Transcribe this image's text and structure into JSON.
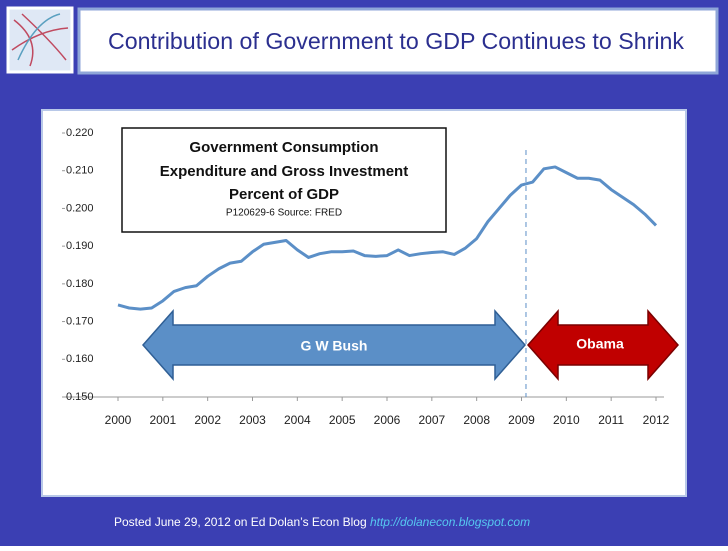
{
  "header": {
    "title": "Contribution of Government to GDP Continues to Shrink"
  },
  "chart_data": {
    "type": "line",
    "annotations": [
      "Government  Consumption",
      "Expenditure and Gross Investment",
      "Percent of GDP",
      "P120629-6 Source: FRED",
      "G W Bush",
      "Obama"
    ],
    "x": [
      2000,
      2000.25,
      2000.5,
      2000.75,
      2001,
      2001.25,
      2001.5,
      2001.75,
      2002,
      2002.25,
      2002.5,
      2002.75,
      2003,
      2003.25,
      2003.5,
      2003.75,
      2004,
      2004.25,
      2004.5,
      2004.75,
      2005,
      2005.25,
      2005.5,
      2005.75,
      2006,
      2006.25,
      2006.5,
      2006.75,
      2007,
      2007.25,
      2007.5,
      2007.75,
      2008,
      2008.25,
      2008.5,
      2008.75,
      2009,
      2009.25,
      2009.5,
      2009.75,
      2010,
      2010.25,
      2010.5,
      2010.75,
      2011,
      2011.25,
      2011.5,
      2011.75,
      2012
    ],
    "series": [
      {
        "color": "#5b8fc7",
        "values": [
          0.1744,
          0.1736,
          0.1733,
          0.1736,
          0.1755,
          0.178,
          0.179,
          0.1795,
          0.182,
          0.184,
          0.1855,
          0.186,
          0.1885,
          0.1905,
          0.191,
          0.1915,
          0.189,
          0.187,
          0.188,
          0.1885,
          0.1885,
          0.1887,
          0.1875,
          0.1873,
          0.1875,
          0.189,
          0.1875,
          0.188,
          0.1883,
          0.1885,
          0.1878,
          0.1895,
          0.192,
          0.1965,
          0.2,
          0.2035,
          0.2062,
          0.207,
          0.2105,
          0.211,
          0.2095,
          0.208,
          0.208,
          0.2075,
          0.205,
          0.203,
          0.201,
          0.1985,
          0.1955
        ]
      }
    ],
    "vline_x": 2009.1,
    "xlim": [
      2000,
      2012
    ],
    "xticks": [
      2000,
      2001,
      2002,
      2003,
      2004,
      2005,
      2006,
      2007,
      2008,
      2009,
      2010,
      2011,
      2012
    ],
    "ylim": [
      0.15,
      0.22
    ],
    "yticks": [
      {
        "value": 0.15,
        "label": "0.150"
      },
      {
        "value": 0.16,
        "label": "0.160"
      },
      {
        "value": 0.17,
        "label": "0.170"
      },
      {
        "value": 0.18,
        "label": "0.180"
      },
      {
        "value": 0.19,
        "label": "0.190"
      },
      {
        "value": 0.2,
        "label": "0.200"
      },
      {
        "value": 0.21,
        "label": "0.210"
      },
      {
        "value": 0.22,
        "label": "0.220"
      }
    ]
  },
  "footer": {
    "text": "Posted June 29, 2012 on Ed Dolan’s Econ Blog ",
    "link": "http://dolanecon.blogspot.com"
  }
}
